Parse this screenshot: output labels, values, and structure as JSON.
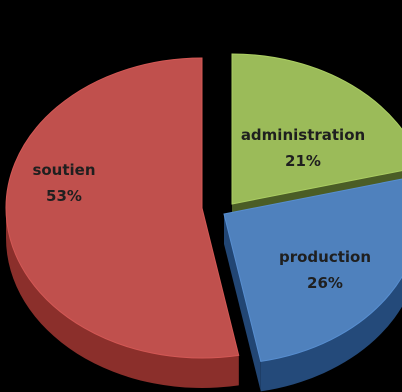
{
  "chart_data": {
    "type": "pie",
    "style": "3d-exploded",
    "start_angle_deg": 90,
    "direction": "clockwise",
    "slices": [
      {
        "label": "administration",
        "value": 21,
        "display": "21%",
        "color": "#9bbb59",
        "side_color": "#4f6228"
      },
      {
        "label": "production",
        "value": 26,
        "display": "26%",
        "color": "#4f81bd",
        "side_color": "#244a7a"
      },
      {
        "label": "soutien",
        "value": 53,
        "display": "53%",
        "color": "#c0504d",
        "side_color": "#8b2f2b"
      }
    ]
  }
}
